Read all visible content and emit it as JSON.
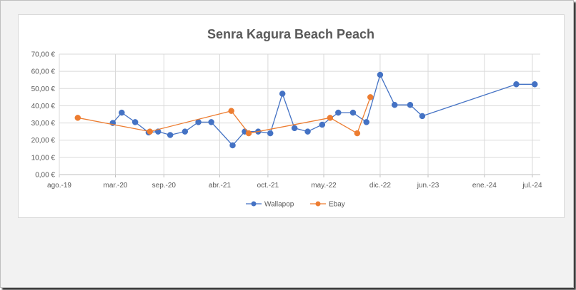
{
  "chart_data": {
    "type": "line",
    "title": "Senra Kagura Beach Peach",
    "ylim": [
      0,
      70
    ],
    "y_ticks": [
      {
        "value": 0,
        "label": "0,00 €"
      },
      {
        "value": 10,
        "label": "10,00 €"
      },
      {
        "value": 20,
        "label": "20,00 €"
      },
      {
        "value": 30,
        "label": "30,00 €"
      },
      {
        "value": 40,
        "label": "40,00 €"
      },
      {
        "value": 50,
        "label": "50,00 €"
      },
      {
        "value": 60,
        "label": "60,00 €"
      },
      {
        "value": 70,
        "label": "70,00 €"
      }
    ],
    "xlim": [
      "2019-08-01",
      "2024-07-31"
    ],
    "x_ticks": [
      {
        "date": "2019-08-01",
        "label": "ago.-19"
      },
      {
        "date": "2020-03-01",
        "label": "mar.-20"
      },
      {
        "date": "2020-09-01",
        "label": "sep.-20"
      },
      {
        "date": "2021-04-01",
        "label": "abr.-21"
      },
      {
        "date": "2021-10-01",
        "label": "oct.-21"
      },
      {
        "date": "2022-05-01",
        "label": "may.-22"
      },
      {
        "date": "2022-12-01",
        "label": "dic.-22"
      },
      {
        "date": "2023-06-01",
        "label": "jun.-23"
      },
      {
        "date": "2024-01-01",
        "label": "ene.-24"
      },
      {
        "date": "2024-07-01",
        "label": "jul.-24"
      }
    ],
    "grid": true,
    "legend_position": "bottom",
    "series": [
      {
        "name": "Wallapop",
        "color": "#4472c4",
        "points": [
          {
            "x": "2020-02-20",
            "y": 30
          },
          {
            "x": "2020-03-25",
            "y": 36
          },
          {
            "x": "2020-05-15",
            "y": 30.5
          },
          {
            "x": "2020-07-05",
            "y": 24.5
          },
          {
            "x": "2020-08-10",
            "y": 25
          },
          {
            "x": "2020-09-25",
            "y": 23
          },
          {
            "x": "2020-11-20",
            "y": 25
          },
          {
            "x": "2021-01-10",
            "y": 30.5
          },
          {
            "x": "2021-02-28",
            "y": 30.5
          },
          {
            "x": "2021-05-20",
            "y": 17
          },
          {
            "x": "2021-07-05",
            "y": 25
          },
          {
            "x": "2021-08-25",
            "y": 25
          },
          {
            "x": "2021-10-10",
            "y": 24
          },
          {
            "x": "2021-11-25",
            "y": 47
          },
          {
            "x": "2022-01-10",
            "y": 27
          },
          {
            "x": "2022-03-01",
            "y": 25
          },
          {
            "x": "2022-04-25",
            "y": 29
          },
          {
            "x": "2022-06-25",
            "y": 36
          },
          {
            "x": "2022-08-20",
            "y": 36
          },
          {
            "x": "2022-10-10",
            "y": 30.5
          },
          {
            "x": "2022-12-01",
            "y": 58
          },
          {
            "x": "2023-01-25",
            "y": 40.5
          },
          {
            "x": "2023-03-25",
            "y": 40.5
          },
          {
            "x": "2023-05-10",
            "y": 34
          },
          {
            "x": "2024-05-01",
            "y": 52.5
          },
          {
            "x": "2024-07-10",
            "y": 52.5
          }
        ]
      },
      {
        "name": "Ebay",
        "color": "#ed7d31",
        "points": [
          {
            "x": "2019-10-10",
            "y": 33
          },
          {
            "x": "2020-07-10",
            "y": 25
          },
          {
            "x": "2021-05-15",
            "y": 37
          },
          {
            "x": "2021-07-20",
            "y": 24
          },
          {
            "x": "2022-05-25",
            "y": 33
          },
          {
            "x": "2022-09-05",
            "y": 24
          },
          {
            "x": "2022-10-25",
            "y": 45
          }
        ]
      }
    ]
  }
}
